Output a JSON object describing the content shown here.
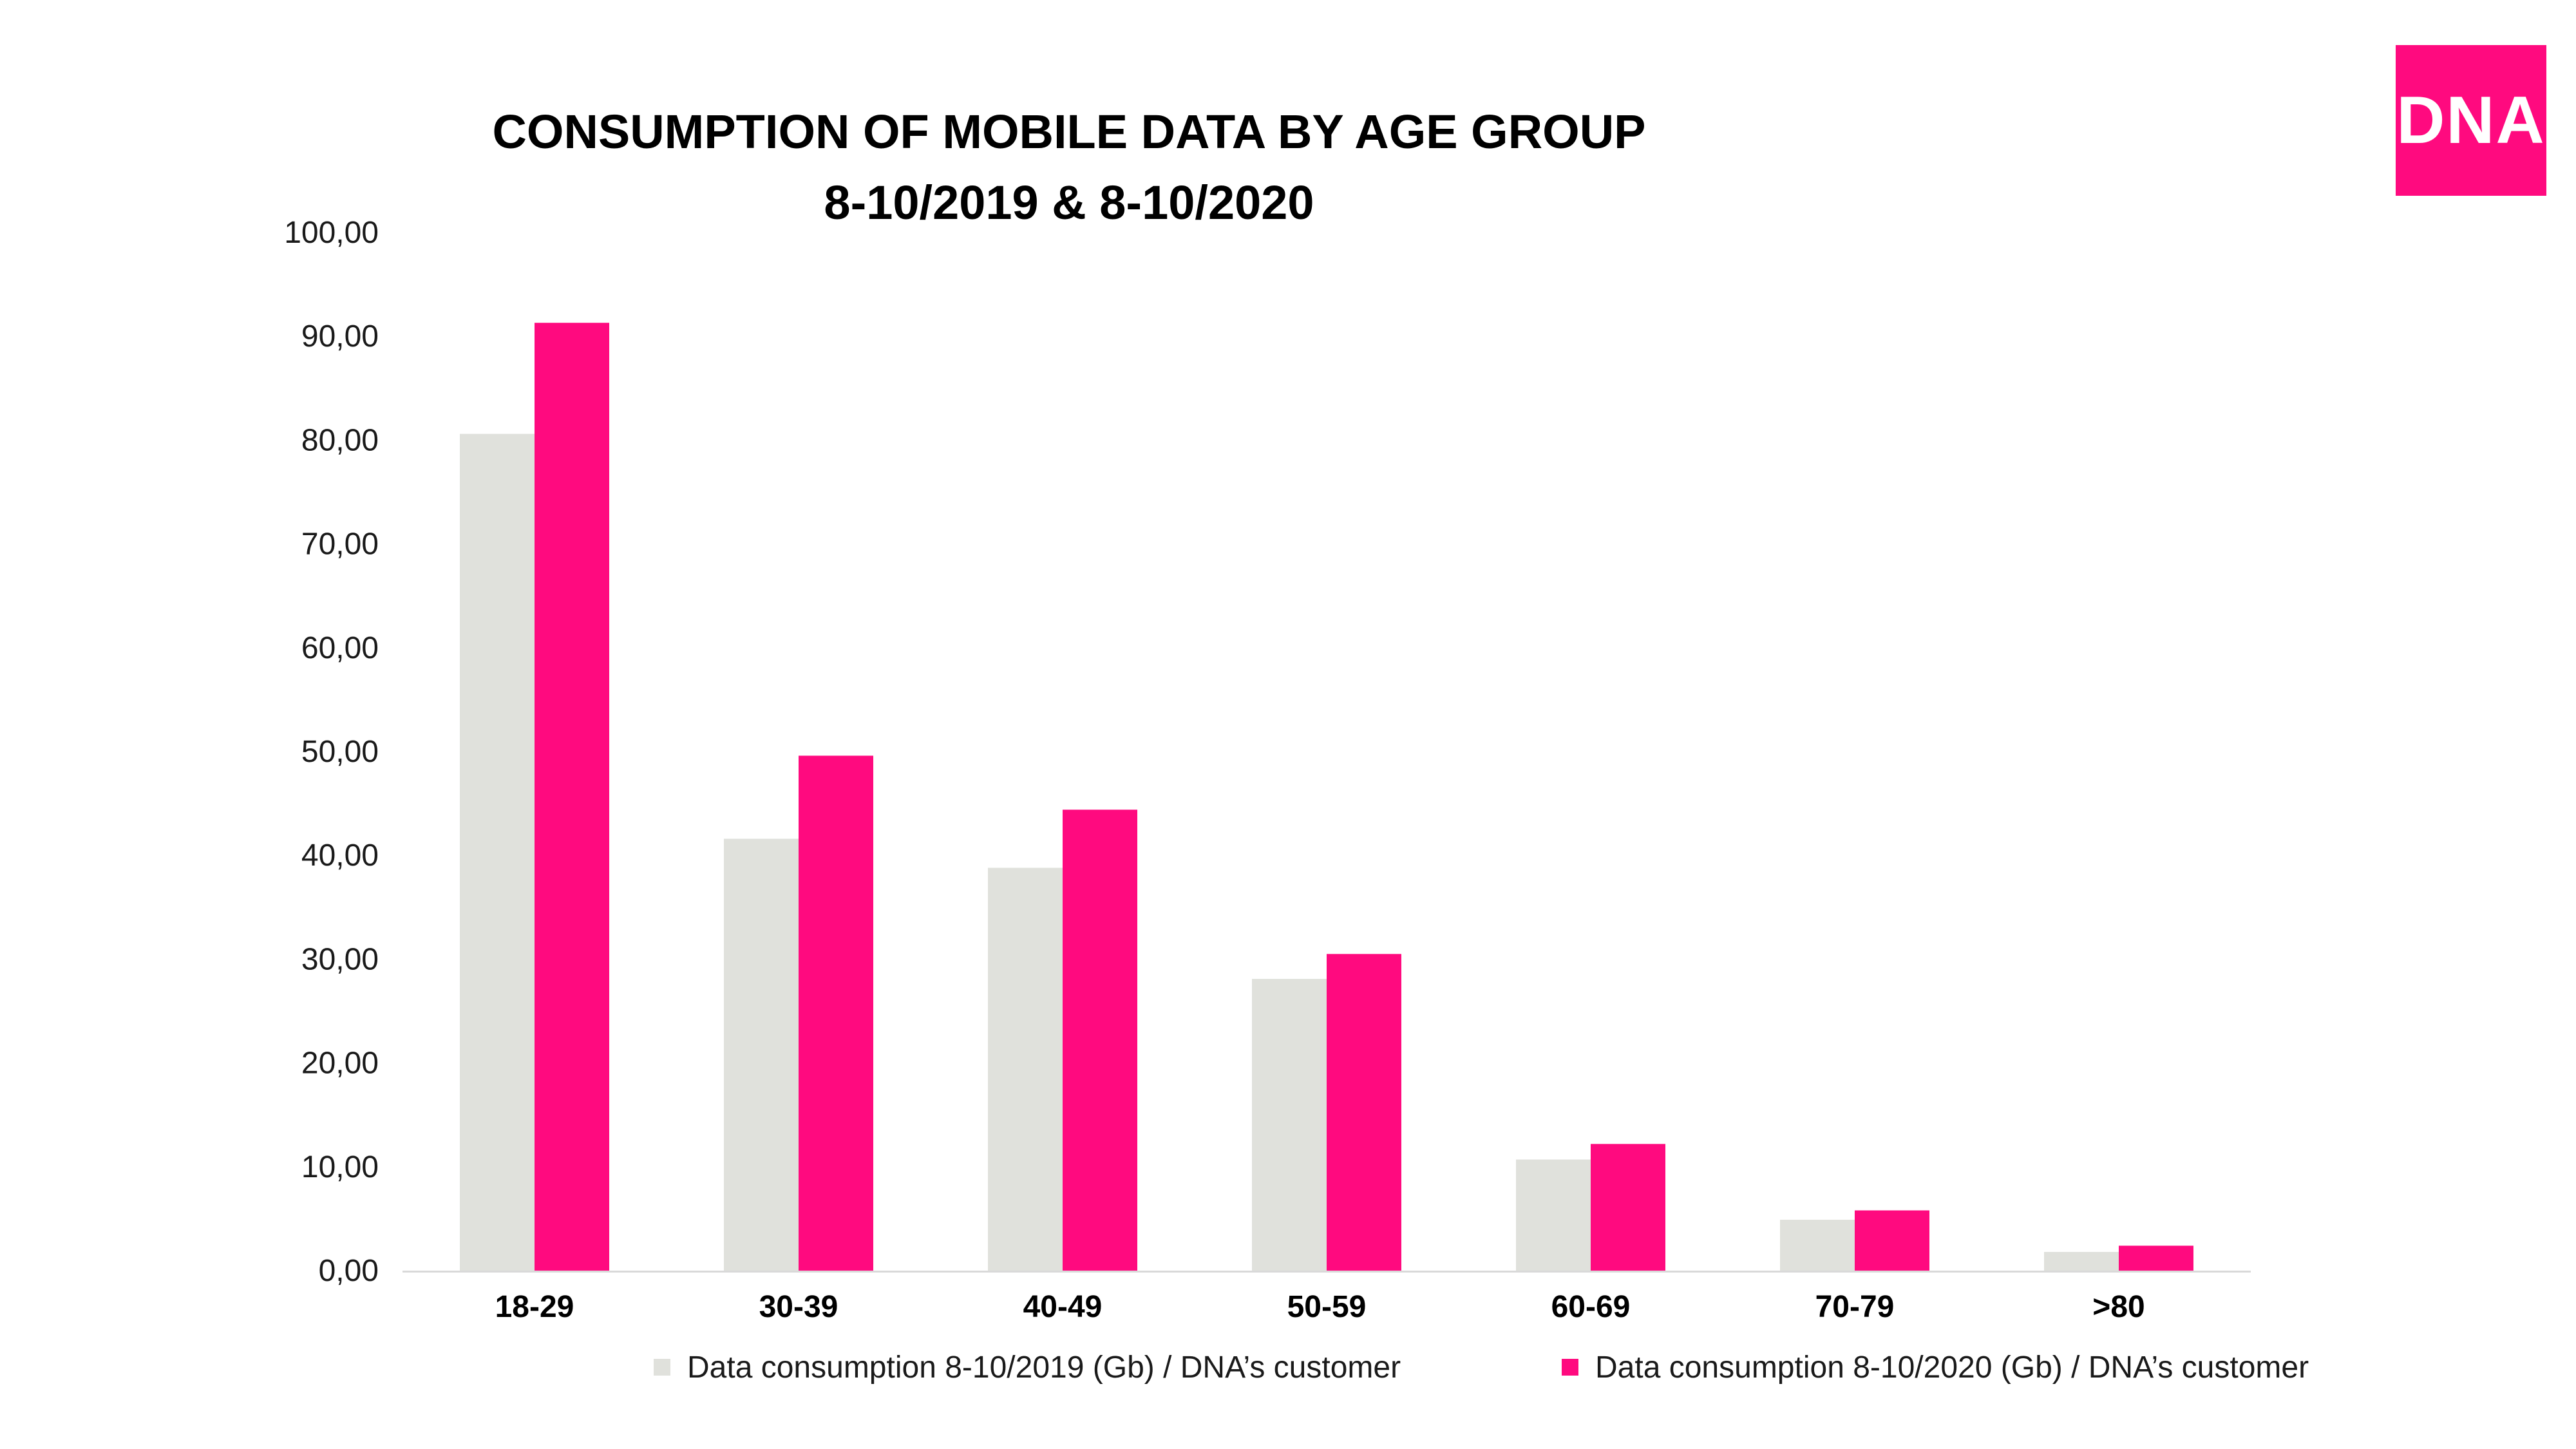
{
  "chart_data": {
    "type": "bar",
    "title": [
      "CONSUMPTION OF MOBILE DATA BY AGE GROUP",
      "8-10/2019 & 8-10/2020"
    ],
    "categories": [
      "18-29",
      "30-39",
      "40-49",
      "50-59",
      "60-69",
      "70-79",
      ">80"
    ],
    "series": [
      {
        "name": "Data consumption 8-10/2019 (Gb) / DNA’s customer",
        "color": "#e0e1dc",
        "values": [
          80.6,
          41.6,
          38.8,
          28.1,
          10.7,
          4.9,
          1.8
        ]
      },
      {
        "name": "Data consumption 8-10/2020 (Gb) / DNA’s customer",
        "color": "#ff0a7f",
        "values": [
          91.3,
          49.6,
          44.4,
          30.5,
          12.2,
          5.8,
          2.4
        ]
      }
    ],
    "ylim": [
      0,
      100
    ],
    "yticks": [
      "0,00",
      "10,00",
      "20,00",
      "30,00",
      "40,00",
      "50,00",
      "60,00",
      "70,00",
      "80,00",
      "90,00",
      "100,00"
    ],
    "grid": false,
    "legend_position": "bottom"
  },
  "logo": {
    "text": "DNA",
    "color": "#ff0a7f"
  }
}
